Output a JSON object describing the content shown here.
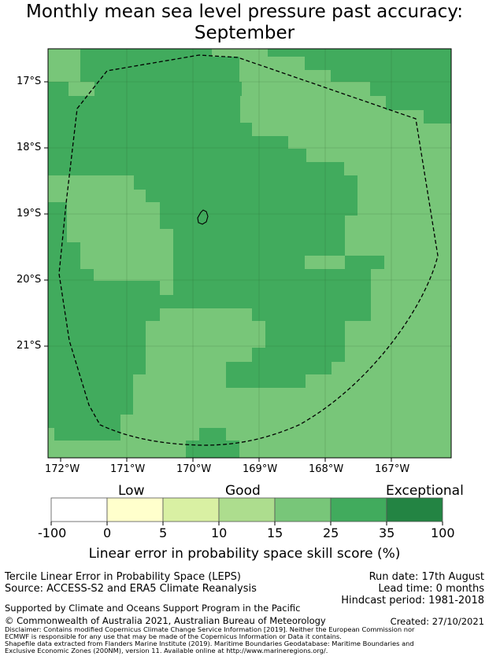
{
  "title": {
    "line1": "Monthly mean sea level pressure past accuracy:",
    "line2": "September"
  },
  "map": {
    "lat_labels": [
      "17°S",
      "18°S",
      "19°S",
      "20°S",
      "21°S"
    ],
    "lon_labels": [
      "172°W",
      "171°W",
      "170°W",
      "169°W",
      "168°W",
      "167°W"
    ],
    "colors": {
      "class_15_25": "#78c679",
      "class_25_35": "#41ab5d",
      "boundary": "#000000"
    }
  },
  "colorbar": {
    "category_labels": [
      "Low",
      "Good",
      "Exceptional"
    ],
    "tick_labels": [
      "-100",
      "0",
      "5",
      "10",
      "15",
      "25",
      "35",
      "100"
    ],
    "colors": [
      "#ffffff",
      "#ffffcc",
      "#d9f0a3",
      "#addd8e",
      "#78c679",
      "#41ab5d",
      "#238443"
    ],
    "label": "Linear error in probability space skill score (%)"
  },
  "footer": {
    "method": "Tercile Linear Error in Probability Space (LEPS)",
    "source": "Source: ACCESS-S2 and ERA5 Climate Reanalysis",
    "run_date": "Run date: 17th August",
    "lead_time": "Lead time: 0 months",
    "hindcast": "Hindcast period: 1981-2018",
    "support": "Supported by Climate and Oceans Support Program in the Pacific",
    "copyright": "© Commonwealth of Australia 2021, Australian Bureau of Meteorology",
    "created": "Created: 27/10/2021",
    "disclaimer1": "Disclaimer: Contains modified Copernicus Climate Change Service Information [2019]. Neither the European Commission nor",
    "disclaimer2": "ECMWF is responsible for any use that may be made of the Copernicus Information or Data it contains.",
    "disclaimer3": "Shapefile data extracted from Flanders Marine Institute (2019). Maritime Boundaries Geodatabase: Maritime Boundaries and",
    "disclaimer4": "Exclusive Economic Zones (200NM), version 11. Available online at http://www.marineregions.org/."
  }
}
